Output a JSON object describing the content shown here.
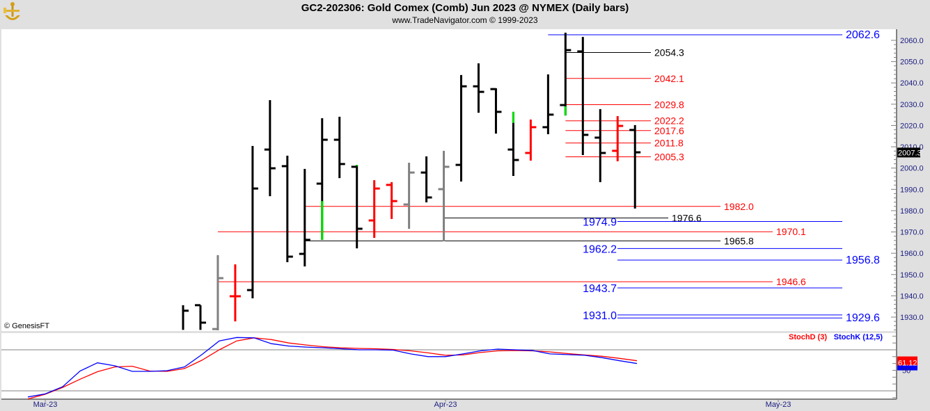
{
  "header": {
    "title": "GC2-202306:  Gold Comex (Comb) Jun 2023 @ NYMEX  (Daily bars)",
    "subtitle": "www.TradeNavigator.com © 1999-2023"
  },
  "watermark": "© GenesisFT",
  "colors": {
    "up": "#000000",
    "down": "#ff0000",
    "neutral": "#808080",
    "highlight": "#00e000",
    "stochD": "#ff0000",
    "stochK": "#0000ff",
    "axis_text": "#1a1a80"
  },
  "chart_data": [
    {
      "type": "ohlc",
      "ylim": [
        1922,
        2066
      ],
      "y_ticks": [
        "2060.0",
        "2050.0",
        "2040.0",
        "2030.0",
        "2020.0",
        "2010.0",
        "2000.0",
        "1990.0",
        "1980.0",
        "1970.0",
        "1960.0",
        "1950.0",
        "1940.0",
        "1930.0"
      ],
      "x_ticks": [
        "Mar-23",
        "Apr-23",
        "May-23"
      ],
      "last_price": "2007.3",
      "bars": [
        {
          "date": "2023-03-13",
          "o": null,
          "h": 1935.6,
          "l": 1924.0,
          "c": 1933.0,
          "color": "up"
        },
        {
          "date": "2023-03-14",
          "o": 1935.6,
          "h": 1935.6,
          "l": 1924.0,
          "c": 1927.4,
          "color": "up"
        },
        {
          "date": "2023-03-15",
          "o": 1924.4,
          "h": 1959.1,
          "l": 1923.8,
          "c": 1948.3,
          "color": "neutral"
        },
        {
          "date": "2023-03-16",
          "o": 1939.8,
          "h": 1954.8,
          "l": 1928.0,
          "c": 1939.8,
          "color": "down"
        },
        {
          "date": "2023-03-17",
          "o": 1942.7,
          "h": 2010.4,
          "l": 1938.8,
          "c": 1990.4,
          "color": "up"
        },
        {
          "date": "2023-03-20",
          "o": 2008.7,
          "h": 2031.9,
          "l": 1986.8,
          "c": 1999.9,
          "color": "up"
        },
        {
          "date": "2023-03-21",
          "o": 2000.9,
          "h": 2005.8,
          "l": 1955.8,
          "c": 1958.4,
          "color": "up"
        },
        {
          "date": "2023-03-22",
          "o": 1959.7,
          "h": 1999.6,
          "l": 1953.8,
          "c": 1966.3,
          "color": "up"
        },
        {
          "date": "2023-03-23",
          "o": 1992.7,
          "h": 2023.4,
          "l": 1966.3,
          "c": 2013.3,
          "color": "up",
          "highlight": [
            1966.3,
            1984.5
          ]
        },
        {
          "date": "2023-03-24",
          "o": 2013.3,
          "h": 2024.1,
          "l": 1995.3,
          "c": 2001.9,
          "color": "up"
        },
        {
          "date": "2023-03-27",
          "o": 2000.6,
          "h": 2001.5,
          "l": 1962.3,
          "c": 1971.5,
          "color": "up",
          "highlight": [
            2000.9,
            2001.5
          ]
        },
        {
          "date": "2023-03-28",
          "o": 1975.4,
          "h": 1994.3,
          "l": 1967.2,
          "c": 1990.4,
          "color": "down"
        },
        {
          "date": "2023-03-29",
          "o": 1992.1,
          "h": 1993.4,
          "l": 1976.1,
          "c": 1984.5,
          "color": "down"
        },
        {
          "date": "2023-03-30",
          "o": 1982.9,
          "h": 2002.5,
          "l": 1971.5,
          "c": 1997.9,
          "color": "neutral"
        },
        {
          "date": "2023-03-31",
          "o": 1997.9,
          "h": 2005.5,
          "l": 1983.9,
          "c": 1986.2,
          "color": "up"
        },
        {
          "date": "2023-04-03",
          "o": 1990.1,
          "h": 2008.1,
          "l": 1965.6,
          "c": 2000.6,
          "color": "neutral"
        },
        {
          "date": "2023-04-04",
          "o": 2001.5,
          "h": 2043.7,
          "l": 1993.7,
          "c": 2038.4,
          "color": "up"
        },
        {
          "date": "2023-04-05",
          "o": 2038.4,
          "h": 2049.2,
          "l": 2026.0,
          "c": 2035.8,
          "color": "up"
        },
        {
          "date": "2023-04-06",
          "o": 2037.1,
          "h": 2037.5,
          "l": 2016.2,
          "c": 2026.4,
          "color": "up"
        },
        {
          "date": "2023-04-10",
          "o": 2008.7,
          "h": 2026.4,
          "l": 1996.3,
          "c": 2003.8,
          "color": "up",
          "highlight": [
            2021.2,
            2026.4
          ]
        },
        {
          "date": "2023-04-11",
          "o": 2007.1,
          "h": 2022.8,
          "l": 2003.5,
          "c": 2019.2,
          "color": "down"
        },
        {
          "date": "2023-04-12",
          "o": 2019.2,
          "h": 2044.0,
          "l": 2015.9,
          "c": 2025.1,
          "color": "up"
        },
        {
          "date": "2023-04-13",
          "o": 2029.6,
          "h": 2063.6,
          "l": 2024.7,
          "c": 2055.4,
          "color": "up",
          "highlight": [
            2024.7,
            2029.0
          ]
        },
        {
          "date": "2023-04-14",
          "o": 2054.8,
          "h": 2061.6,
          "l": 2006.1,
          "c": 2015.6,
          "color": "up"
        },
        {
          "date": "2023-04-17",
          "o": 2014.3,
          "h": 2027.7,
          "l": 1993.4,
          "c": 2007.1,
          "color": "up"
        },
        {
          "date": "2023-04-18",
          "o": 2008.1,
          "h": 2024.4,
          "l": 2003.2,
          "c": 2019.8,
          "color": "down"
        },
        {
          "date": "2023-04-19",
          "o": 2017.9,
          "h": 2020.2,
          "l": 1981.0,
          "c": 2007.4,
          "color": "up"
        }
      ],
      "levels": [
        {
          "label": "2062.6",
          "price": 2062.6,
          "color": "#0000ff",
          "from": "2023-04-12",
          "side": "right"
        },
        {
          "label": "2054.3",
          "price": 2054.3,
          "color": "#000000",
          "from": "2023-04-13",
          "side": "right"
        },
        {
          "label": "2042.1",
          "price": 2042.1,
          "color": "#ff0000",
          "from": "2023-04-13",
          "side": "right"
        },
        {
          "label": "2029.8",
          "price": 2029.8,
          "color": "#ff0000",
          "from": "2023-04-13",
          "side": "right"
        },
        {
          "label": "2022.2",
          "price": 2022.2,
          "color": "#ff0000",
          "from": "2023-04-13",
          "side": "right"
        },
        {
          "label": "2017.6",
          "price": 2017.6,
          "color": "#ff0000",
          "from": "2023-04-13",
          "side": "right"
        },
        {
          "label": "2011.8",
          "price": 2011.8,
          "color": "#ff0000",
          "from": "2023-04-13",
          "side": "right"
        },
        {
          "label": "2005.3",
          "price": 2005.3,
          "color": "#ff0000",
          "from": "2023-04-13",
          "side": "right"
        },
        {
          "label": "1982.0",
          "price": 1982.0,
          "color": "#ff0000",
          "from": "2023-03-22",
          "side": "right"
        },
        {
          "label": "1976.6",
          "price": 1976.6,
          "color": "#000000",
          "from": "2023-04-03",
          "side": "right"
        },
        {
          "label": "1974.9",
          "price": 1974.9,
          "color": "#0000ff",
          "from": "2023-04-18",
          "side": "left"
        },
        {
          "label": "1970.1",
          "price": 1970.1,
          "color": "#ff0000",
          "from": "2023-03-15",
          "side": "right"
        },
        {
          "label": "1965.8",
          "price": 1965.8,
          "color": "#000000",
          "from": "2023-03-22",
          "side": "right"
        },
        {
          "label": "1962.2",
          "price": 1962.2,
          "color": "#0000ff",
          "from": "2023-04-18",
          "side": "left"
        },
        {
          "label": "1956.8",
          "price": 1956.8,
          "color": "#0000ff",
          "from": "2023-04-18",
          "side": "right"
        },
        {
          "label": "1946.6",
          "price": 1946.6,
          "color": "#ff0000",
          "from": "2023-03-15",
          "side": "right"
        },
        {
          "label": "1943.7",
          "price": 1943.7,
          "color": "#0000ff",
          "from": "2023-04-18",
          "side": "left"
        },
        {
          "label": "1931.0",
          "price": 1931.0,
          "color": "#0000ff",
          "from": "2023-04-18",
          "side": "left"
        },
        {
          "label": "1929.6",
          "price": 1929.6,
          "color": "#0000ff",
          "from": "2023-04-18",
          "side": "right"
        }
      ]
    },
    {
      "type": "line",
      "ylim": [
        10,
        105
      ],
      "reference_lines": [
        20,
        80
      ],
      "y_tick_label": "50",
      "legend": "top-right",
      "series": [
        {
          "name": "StochD (3)",
          "last_label": "61.12",
          "values": [
            8,
            15,
            25,
            37,
            48,
            55,
            56,
            49,
            48.5,
            52.5,
            64.8,
            80,
            93,
            97.5,
            95,
            90,
            87,
            84.5,
            83,
            82,
            81.5,
            80.5,
            78.5,
            75.5,
            72,
            72.5,
            76,
            78.5,
            79,
            78.5,
            77,
            74.5,
            72.5,
            70.5,
            67.5,
            64
          ]
        },
        {
          "name": "StochK (12,5)",
          "values": [
            11,
            15.5,
            26,
            49,
            61,
            56.6,
            48.5,
            48.5,
            49.5,
            55,
            73,
            93,
            98,
            97.5,
            89,
            85.5,
            84,
            83,
            81.5,
            80,
            80,
            79.5,
            74,
            70,
            70,
            74,
            78.5,
            81,
            80,
            79,
            74,
            73,
            72,
            68.5,
            64,
            60
          ]
        }
      ]
    }
  ]
}
